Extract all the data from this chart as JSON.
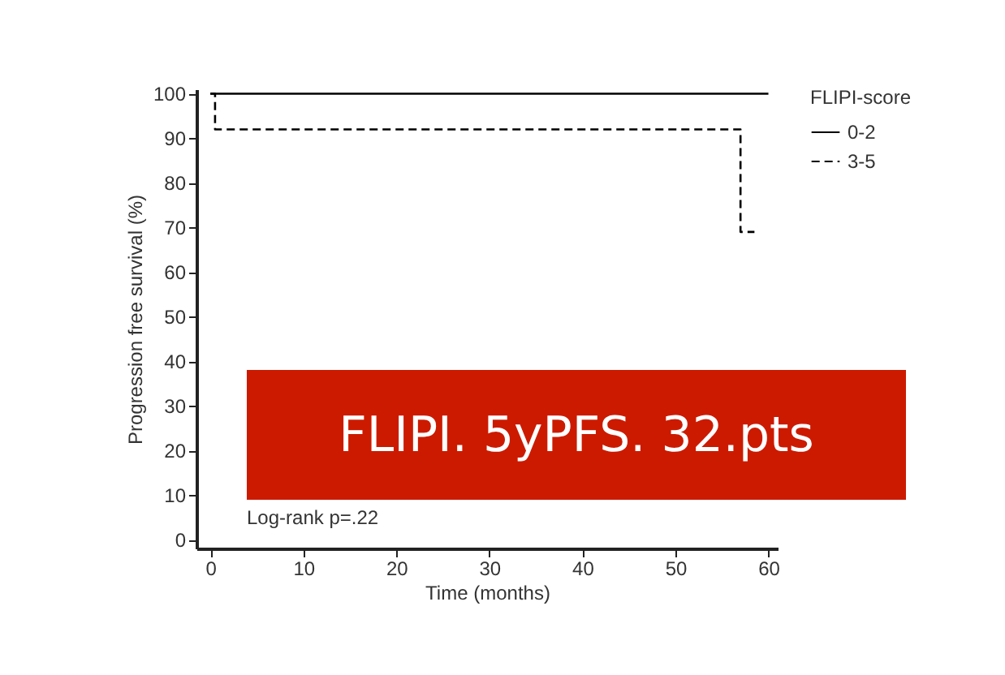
{
  "chart_data": {
    "type": "step",
    "xlabel": "Time (months)",
    "ylabel": "Progression free survival (%)",
    "legend_title": "FLIPI-score",
    "xlim": [
      -1.5,
      61
    ],
    "xticks": [
      0,
      10,
      20,
      30,
      40,
      50,
      60
    ],
    "ylim": [
      -2,
      101
    ],
    "yticks": [
      0,
      10,
      20,
      30,
      40,
      50,
      60,
      70,
      80,
      90,
      100
    ],
    "grid": false,
    "legend": "right",
    "series": [
      {
        "name": "0-2",
        "color": "#000000",
        "line_style": "solid",
        "x": [
          0,
          60
        ],
        "values": [
          100,
          100
        ]
      },
      {
        "name": "3-5",
        "color": "#000000",
        "line_style": "dashed",
        "x": [
          0,
          0.5,
          57,
          58.5
        ],
        "values": [
          100,
          92,
          69,
          69
        ]
      }
    ],
    "annotations": [
      "FLIPI. 5yPFS. 32.pts",
      "Log-rank p=.22"
    ]
  }
}
